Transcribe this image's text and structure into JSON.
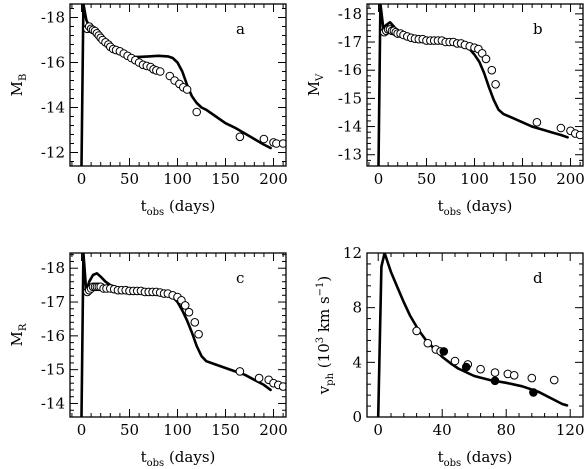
{
  "chart_data": [
    {
      "panel": "a",
      "type": "scatter",
      "label": "a",
      "ylabel": {
        "main": "M",
        "sub": "B"
      },
      "xlabel": {
        "main": "t",
        "sub": "obs",
        "rest": " (days)"
      },
      "xlim": [
        -12,
        213
      ],
      "ylim": [
        -11.4,
        -18.6
      ],
      "x_ticks": [
        0,
        50,
        100,
        150,
        200
      ],
      "x_tick_labels": [
        "0",
        "50",
        "100",
        "150",
        "200"
      ],
      "y_ticks": [
        -12,
        -14,
        -16,
        -18
      ],
      "y_tick_labels": [
        "-12",
        "-14",
        "-16",
        "-18"
      ],
      "series": [
        {
          "kind": "model",
          "x": [
            0,
            2,
            5,
            8,
            12,
            16,
            20,
            25,
            30,
            35,
            40,
            45,
            50,
            55,
            60,
            70,
            80,
            90,
            95,
            100,
            105,
            110,
            115,
            120,
            125,
            130,
            140,
            150,
            160,
            170,
            180,
            190,
            197
          ],
          "y": [
            -11.4,
            -18.6,
            -17.9,
            -17.6,
            -17.5,
            -17.4,
            -17.25,
            -17.0,
            -16.8,
            -16.6,
            -16.45,
            -16.35,
            -16.28,
            -16.25,
            -16.25,
            -16.27,
            -16.3,
            -16.27,
            -16.2,
            -16.0,
            -15.6,
            -15.0,
            -14.5,
            -14.2,
            -14.0,
            -13.9,
            -13.6,
            -13.3,
            -13.1,
            -12.85,
            -12.6,
            -12.35,
            -12.2
          ]
        },
        {
          "kind": "observed",
          "x": [
            6,
            8,
            10,
            12,
            14,
            16,
            18,
            20,
            22,
            25,
            28,
            30,
            33,
            36,
            40,
            44,
            48,
            52,
            56,
            60,
            64,
            68,
            72,
            75,
            78,
            82,
            92,
            97,
            102,
            106,
            110,
            120,
            165,
            190,
            200,
            203,
            210
          ],
          "y": [
            -17.5,
            -17.6,
            -17.5,
            -17.45,
            -17.4,
            -17.3,
            -17.2,
            -17.1,
            -17.0,
            -16.9,
            -16.8,
            -16.7,
            -16.6,
            -16.55,
            -16.5,
            -16.4,
            -16.3,
            -16.2,
            -16.1,
            -16.0,
            -15.9,
            -15.85,
            -15.8,
            -15.7,
            -15.65,
            -15.6,
            -15.4,
            -15.2,
            -15.05,
            -14.9,
            -14.8,
            -13.8,
            -12.7,
            -12.6,
            -12.45,
            -12.4,
            -12.4
          ]
        }
      ]
    },
    {
      "panel": "b",
      "type": "scatter",
      "label": "b",
      "ylabel": {
        "main": "M",
        "sub": "V"
      },
      "xlabel": {
        "main": "t",
        "sub": "obs",
        "rest": " (days)"
      },
      "xlim": [
        -12,
        213
      ],
      "ylim": [
        -12.6,
        -18.35
      ],
      "x_ticks": [
        0,
        50,
        100,
        150,
        200
      ],
      "x_tick_labels": [
        "0",
        "50",
        "100",
        "150",
        "200"
      ],
      "y_ticks": [
        -13,
        -14,
        -15,
        -16,
        -17,
        -18
      ],
      "y_tick_labels": [
        "-13",
        "-14",
        "-15",
        "-16",
        "-17",
        "-18"
      ],
      "series": [
        {
          "kind": "model",
          "x": [
            0,
            2,
            5,
            8,
            12,
            16,
            20,
            25,
            30,
            40,
            50,
            60,
            70,
            80,
            90,
            95,
            100,
            105,
            110,
            115,
            120,
            125,
            130,
            140,
            150,
            160,
            170,
            180,
            190,
            197
          ],
          "y": [
            -12.6,
            -18.35,
            -17.5,
            -17.6,
            -17.7,
            -17.55,
            -17.3,
            -17.25,
            -17.2,
            -17.15,
            -17.1,
            -17.05,
            -17.0,
            -16.95,
            -16.85,
            -16.75,
            -16.55,
            -16.3,
            -15.9,
            -15.4,
            -14.95,
            -14.6,
            -14.45,
            -14.3,
            -14.15,
            -14.0,
            -13.9,
            -13.8,
            -13.7,
            -13.62
          ]
        },
        {
          "kind": "observed",
          "x": [
            6,
            8,
            10,
            12,
            14,
            16,
            18,
            20,
            23,
            26,
            30,
            34,
            38,
            42,
            46,
            50,
            54,
            58,
            62,
            66,
            70,
            74,
            78,
            82,
            86,
            90,
            95,
            100,
            104,
            108,
            112,
            118,
            122,
            165,
            190,
            200,
            205,
            210
          ],
          "y": [
            -17.35,
            -17.4,
            -17.45,
            -17.45,
            -17.4,
            -17.4,
            -17.35,
            -17.3,
            -17.3,
            -17.25,
            -17.2,
            -17.15,
            -17.12,
            -17.1,
            -17.1,
            -17.05,
            -17.05,
            -17.05,
            -17.05,
            -17.05,
            -17.0,
            -17.0,
            -17.0,
            -16.95,
            -16.95,
            -16.9,
            -16.85,
            -16.8,
            -16.75,
            -16.6,
            -16.4,
            -16.0,
            -15.5,
            -14.15,
            -13.95,
            -13.85,
            -13.75,
            -13.7
          ]
        }
      ]
    },
    {
      "panel": "c",
      "type": "scatter",
      "label": "c",
      "ylabel": {
        "main": "M",
        "sub": "R"
      },
      "xlabel": {
        "main": "t",
        "sub": "obs",
        "rest": " (days)"
      },
      "xlim": [
        -12,
        213
      ],
      "ylim": [
        -13.6,
        -18.45
      ],
      "x_ticks": [
        0,
        50,
        100,
        150,
        200
      ],
      "x_tick_labels": [
        "0",
        "50",
        "100",
        "150",
        "200"
      ],
      "y_ticks": [
        -14,
        -15,
        -16,
        -17,
        -18
      ],
      "y_tick_labels": [
        "-14",
        "-15",
        "-16",
        "-17",
        "-18"
      ],
      "series": [
        {
          "kind": "model",
          "x": [
            0,
            2,
            5,
            8,
            12,
            16,
            20,
            25,
            30,
            40,
            50,
            60,
            70,
            80,
            90,
            95,
            100,
            105,
            110,
            115,
            120,
            125,
            130,
            140,
            150,
            160,
            170,
            180,
            190,
            197
          ],
          "y": [
            -13.6,
            -18.45,
            -17.3,
            -17.6,
            -17.8,
            -17.85,
            -17.75,
            -17.6,
            -17.5,
            -17.4,
            -17.35,
            -17.33,
            -17.3,
            -17.28,
            -17.25,
            -17.15,
            -17.0,
            -16.75,
            -16.45,
            -16.1,
            -15.7,
            -15.4,
            -15.25,
            -15.15,
            -15.05,
            -14.95,
            -14.85,
            -14.7,
            -14.55,
            -14.4
          ]
        },
        {
          "kind": "observed",
          "x": [
            6,
            8,
            10,
            12,
            14,
            16,
            18,
            20,
            23,
            26,
            30,
            34,
            38,
            42,
            46,
            50,
            54,
            58,
            62,
            66,
            70,
            74,
            78,
            82,
            86,
            90,
            95,
            100,
            104,
            108,
            112,
            118,
            122,
            165,
            185,
            195,
            200,
            205,
            210
          ],
          "y": [
            -17.3,
            -17.35,
            -17.4,
            -17.45,
            -17.45,
            -17.45,
            -17.45,
            -17.45,
            -17.4,
            -17.4,
            -17.4,
            -17.38,
            -17.35,
            -17.35,
            -17.35,
            -17.33,
            -17.33,
            -17.33,
            -17.33,
            -17.3,
            -17.3,
            -17.3,
            -17.3,
            -17.28,
            -17.25,
            -17.25,
            -17.2,
            -17.15,
            -17.05,
            -16.9,
            -16.7,
            -16.4,
            -16.05,
            -14.95,
            -14.75,
            -14.7,
            -14.6,
            -14.55,
            -14.5
          ]
        }
      ]
    },
    {
      "panel": "d",
      "type": "scatter",
      "label": "d",
      "ylabel": {
        "main": "v",
        "sub": "ph",
        "rest": " (10",
        "sup": "3",
        "rest2": " km s",
        "sup2": "−1",
        "rest3": ")"
      },
      "xlabel": {
        "main": "t",
        "sub": "obs",
        "rest": " (days)"
      },
      "xlim": [
        -7,
        128
      ],
      "ylim": [
        0,
        12
      ],
      "x_ticks": [
        0,
        40,
        80,
        120
      ],
      "x_tick_labels": [
        "0",
        "40",
        "80",
        "120"
      ],
      "y_ticks": [
        0,
        4,
        8,
        12
      ],
      "y_tick_labels": [
        "0",
        "4",
        "8",
        "12"
      ],
      "series": [
        {
          "kind": "model",
          "x": [
            0,
            2,
            4,
            6,
            8,
            12,
            16,
            20,
            25,
            30,
            35,
            40,
            45,
            50,
            60,
            70,
            80,
            90,
            100,
            110,
            115,
            118
          ],
          "y": [
            0,
            11.0,
            12.0,
            11.3,
            10.6,
            9.5,
            8.4,
            7.4,
            6.4,
            5.6,
            5.0,
            4.4,
            3.95,
            3.55,
            3.0,
            2.7,
            2.5,
            2.25,
            1.85,
            1.25,
            0.95,
            0.85
          ]
        },
        {
          "kind": "observed-open",
          "x": [
            24,
            31,
            36,
            39,
            48,
            56,
            64,
            73,
            81,
            85,
            96,
            110
          ],
          "y": [
            6.3,
            5.4,
            4.95,
            4.8,
            4.1,
            3.85,
            3.5,
            3.25,
            3.15,
            3.05,
            2.85,
            2.7
          ]
        },
        {
          "kind": "observed-filled",
          "x": [
            41,
            55,
            73,
            97
          ],
          "y": [
            4.8,
            3.65,
            2.65,
            1.8
          ]
        }
      ]
    }
  ]
}
